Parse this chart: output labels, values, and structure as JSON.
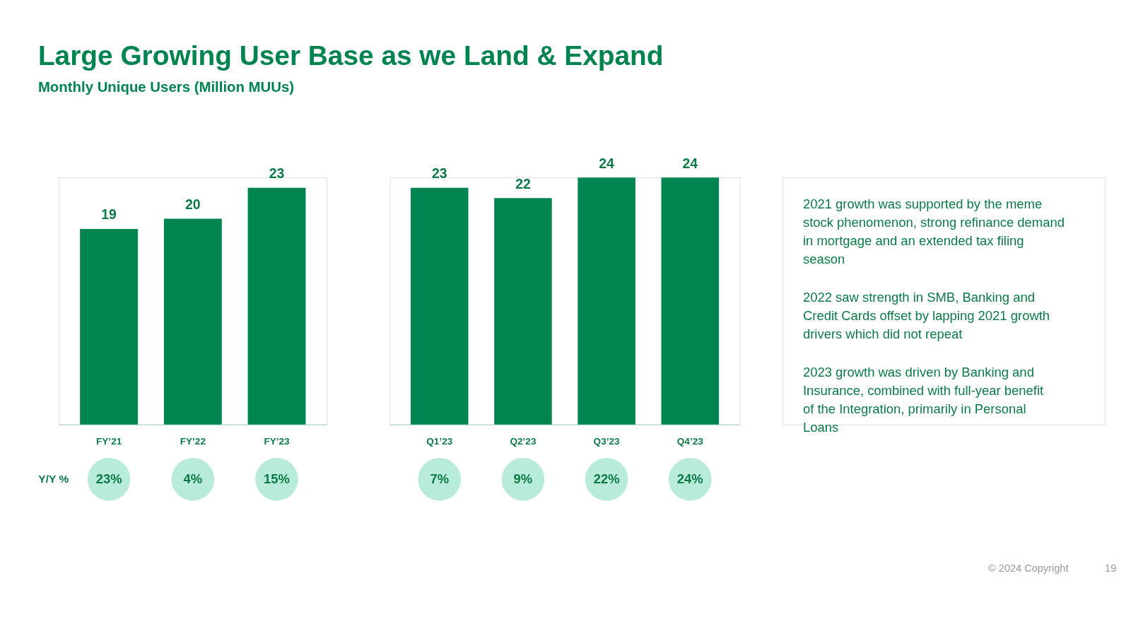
{
  "chart_data": [
    {
      "type": "bar",
      "title": "Large Growing User Base as we Land & Expand",
      "subtitle": "Monthly Unique Users (Million MUUs)",
      "categories": [
        "FY’21",
        "FY’22",
        "FY’23"
      ],
      "values": [
        19,
        20,
        23
      ],
      "color": "#008450",
      "data_labels": true,
      "annotations": [
        "Y/Y %",
        "23%",
        "4%",
        "15%"
      ]
    },
    {
      "type": "bar",
      "categories": [
        "Q1’23",
        "Q2’23",
        "Q3’23",
        "Q4’23"
      ],
      "values": [
        23,
        22,
        24,
        24
      ],
      "color": "#008450",
      "data_labels": true,
      "annotations": [
        "7%",
        "9%",
        "22%",
        "24%"
      ]
    },
    {
      "type": "other",
      "annotations": [
        "2021 growth was supported by the meme stock phenomenon, strong refinance demand in mortgage and an extended tax filing season",
        "2022 saw strength in SMB, Banking and Credit Cards offset by lapping 2021 growth drivers which did not repeat",
        "2023 growth was driven by Banking and Insurance, combined with full-year benefit of the Integration, primarily in Personal Loans",
        "© 2024 Copyright",
        "19"
      ]
    }
  ]
}
